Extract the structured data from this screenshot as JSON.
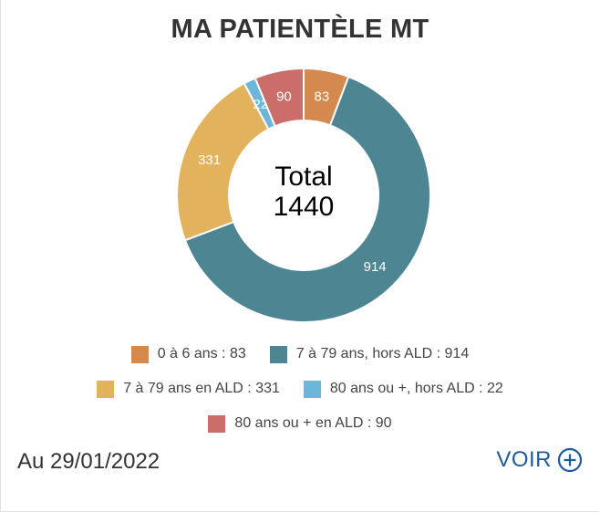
{
  "header": {
    "title": "MA PATIENTÈLE MT"
  },
  "center": {
    "label": "Total",
    "total": "1440"
  },
  "chart_data": {
    "type": "pie",
    "donut": true,
    "total": 1440,
    "slices": [
      {
        "name": "0 à 6 ans",
        "value": 83,
        "color": "#d4894f"
      },
      {
        "name": "7 à 79 ans, hors ALD",
        "value": 914,
        "color": "#4e8593"
      },
      {
        "name": "7 à 79 ans en ALD",
        "value": 331,
        "color": "#e2b25c"
      },
      {
        "name": "80 ans ou +, hors ALD",
        "value": 22,
        "color": "#6cb6da"
      },
      {
        "name": "80 ans ou + en ALD",
        "value": 90,
        "color": "#cb6e69"
      }
    ]
  },
  "legend": {
    "rows": [
      [
        "0 à 6 ans : 83",
        "7 à 79 ans, hors ALD : 914"
      ],
      [
        "7 à 79 ans en ALD : 331",
        "80 ans ou +, hors ALD : 22"
      ],
      [
        "80 ans ou + en ALD : 90"
      ]
    ]
  },
  "footer": {
    "date": "Au 29/01/2022",
    "voir_label": "VOIR",
    "voir_icon": "plus-circle-icon",
    "link_color": "#1f5b9b"
  }
}
